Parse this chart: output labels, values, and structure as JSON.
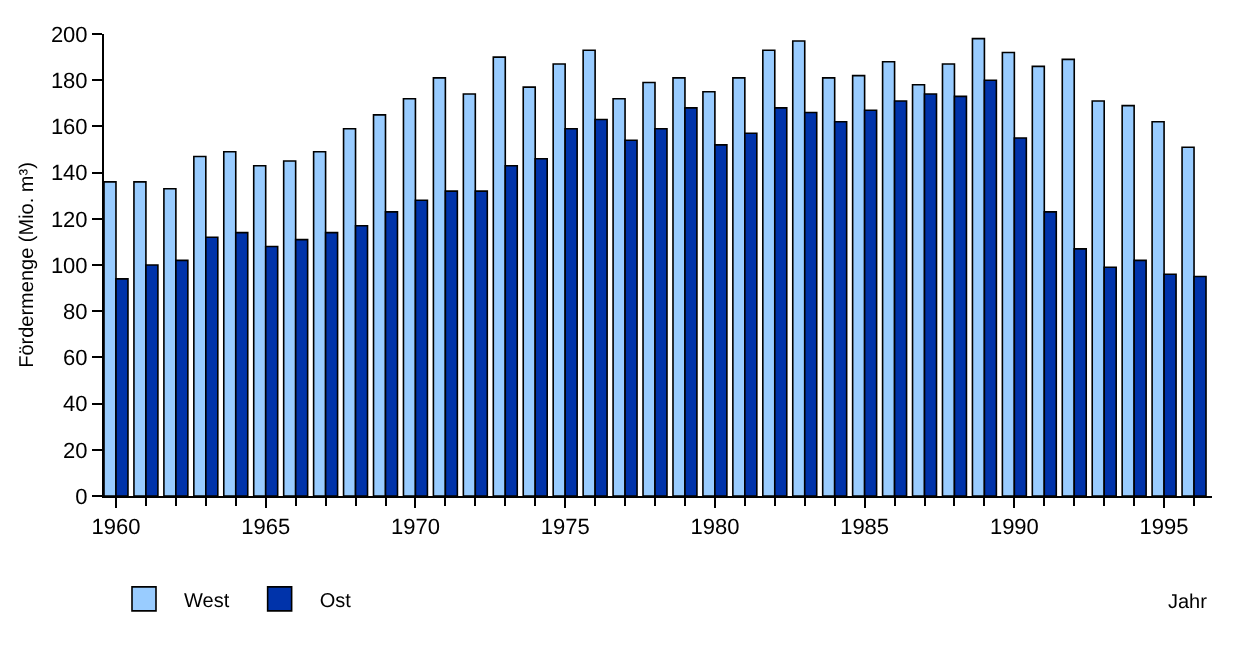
{
  "chart_data": {
    "type": "bar",
    "xlabel": "Jahr",
    "ylabel": "Fördermenge (Mio. m³)",
    "x": [
      1960,
      1961,
      1962,
      1963,
      1964,
      1965,
      1966,
      1967,
      1968,
      1969,
      1970,
      1971,
      1972,
      1973,
      1974,
      1975,
      1976,
      1977,
      1978,
      1979,
      1980,
      1981,
      1982,
      1983,
      1984,
      1985,
      1986,
      1987,
      1988,
      1989,
      1990,
      1991,
      1992,
      1993,
      1994,
      1995,
      1996
    ],
    "series": [
      {
        "name": "West",
        "color": "#99ccff",
        "values": [
          136,
          136,
          133,
          147,
          149,
          143,
          145,
          149,
          159,
          165,
          172,
          181,
          174,
          190,
          177,
          187,
          193,
          172,
          179,
          181,
          175,
          181,
          193,
          197,
          181,
          182,
          188,
          178,
          187,
          198,
          192,
          186,
          189,
          171,
          169,
          162,
          151
        ]
      },
      {
        "name": "Ost",
        "color": "#0033aa",
        "values": [
          94,
          100,
          102,
          112,
          114,
          108,
          111,
          114,
          117,
          123,
          128,
          132,
          132,
          143,
          146,
          159,
          163,
          154,
          159,
          168,
          152,
          157,
          168,
          166,
          162,
          167,
          171,
          174,
          173,
          180,
          155,
          123,
          107,
          99,
          102,
          96,
          95
        ]
      }
    ],
    "xlim": [
      1959.6,
      1996.6
    ],
    "xticks": [
      1960,
      1965,
      1970,
      1975,
      1980,
      1985,
      1990,
      1995
    ],
    "ylim": [
      0,
      200
    ],
    "yticks": [
      0,
      20,
      40,
      60,
      80,
      100,
      120,
      140,
      160,
      180,
      200
    ],
    "grid": false,
    "legend": "bottom left"
  }
}
